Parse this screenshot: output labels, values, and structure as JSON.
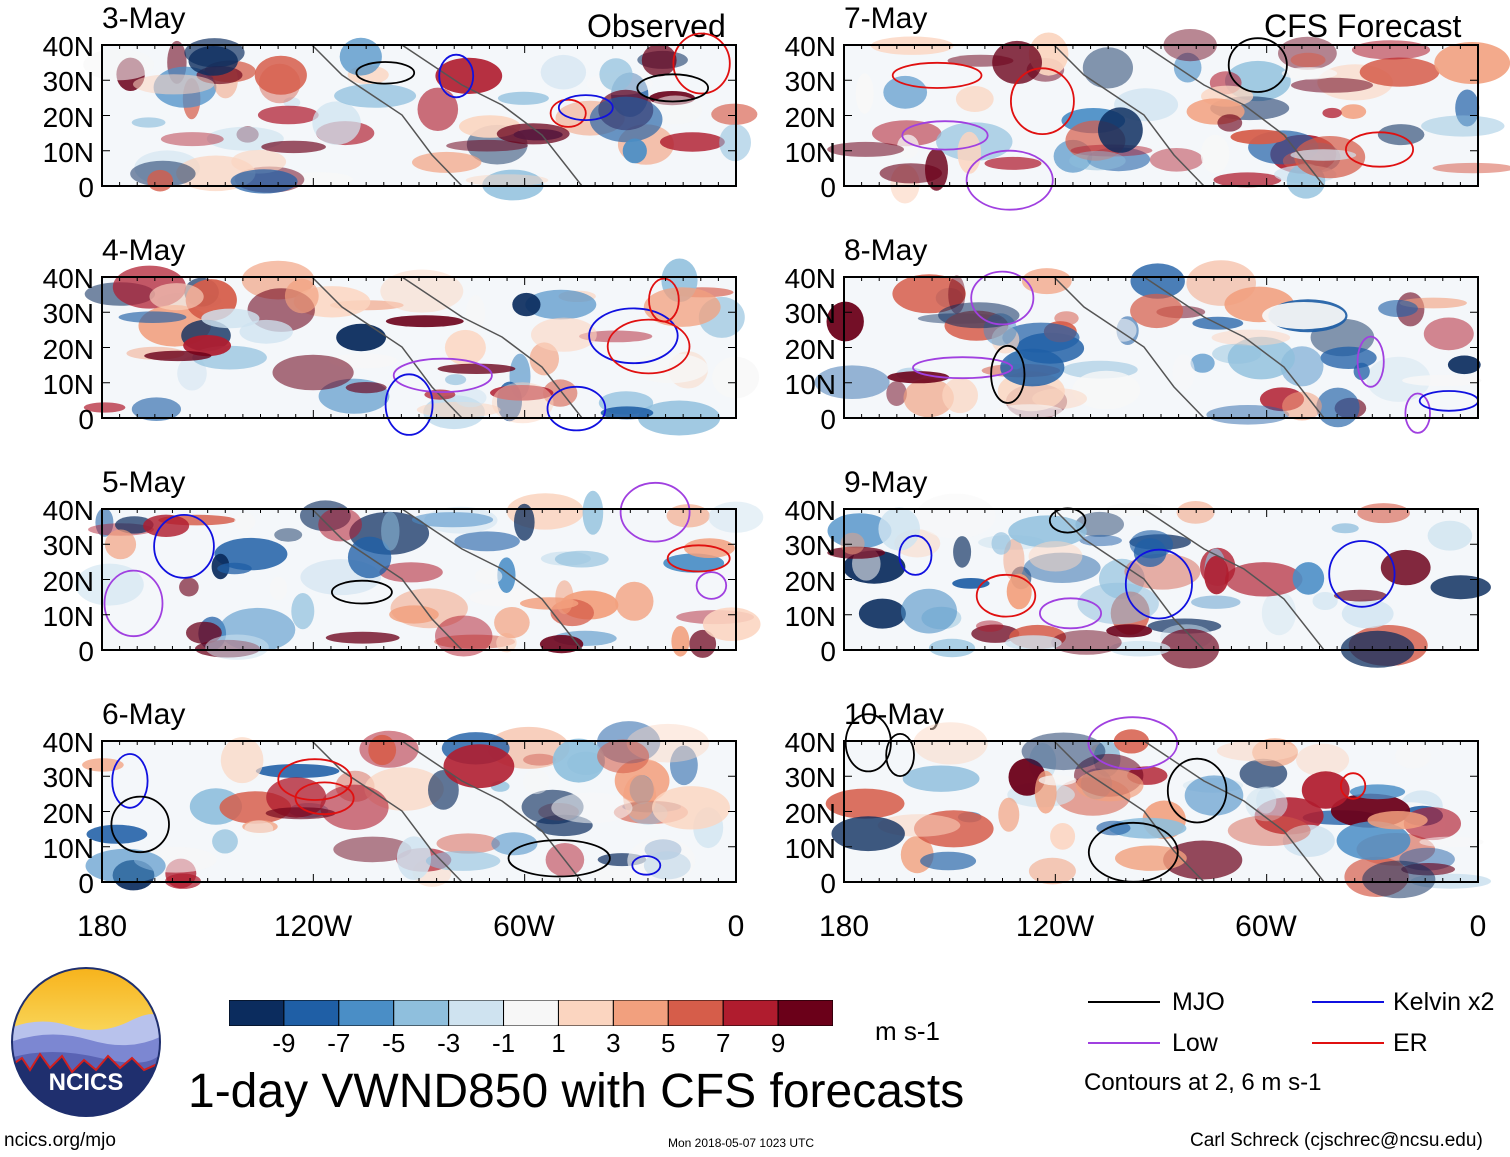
{
  "chart_data": {
    "type": "heatmap",
    "title": "1-day VWND850 with CFS forecasts",
    "variable": "VWND850",
    "units": "m s-1",
    "column_headers": {
      "left": "Observed",
      "right": "CFS Forecast"
    },
    "panels_observed": [
      {
        "date": "3-May"
      },
      {
        "date": "4-May"
      },
      {
        "date": "5-May"
      },
      {
        "date": "6-May"
      }
    ],
    "panels_forecast": [
      {
        "date": "7-May"
      },
      {
        "date": "8-May"
      },
      {
        "date": "9-May"
      },
      {
        "date": "10-May"
      }
    ],
    "lat_ticks": [
      "40N",
      "30N",
      "20N",
      "10N",
      "0"
    ],
    "lon_ticks": [
      "180",
      "120W",
      "60W",
      "0"
    ],
    "ylim": [
      0,
      40
    ],
    "xlim": [
      -180,
      0
    ],
    "colorbar": {
      "labels": [
        "-9",
        "-7",
        "-5",
        "-3",
        "-1",
        "1",
        "3",
        "5",
        "7",
        "9"
      ],
      "colors": [
        "#0b2c5e",
        "#1f5fa6",
        "#4a8ec6",
        "#8fbfdd",
        "#cfe3f0",
        "#f7f7f7",
        "#fbd5c0",
        "#f2a07e",
        "#d65d4a",
        "#b01c2e",
        "#6b0019"
      ],
      "units": "m s-1"
    },
    "legend": [
      {
        "label": "MJO",
        "color": "#000000"
      },
      {
        "label": "Kelvin x2",
        "color": "#1010e0"
      },
      {
        "label": "Low",
        "color": "#a040e0"
      },
      {
        "label": "ER",
        "color": "#e01010"
      }
    ],
    "contours_note": "Contours at 2, 6 m s-1"
  },
  "footer": {
    "logo_text": "NCICS",
    "site": "ncics.org/mjo",
    "timestamp": "Mon 2018-05-07 1023 UTC",
    "credit": "Carl Schreck (cjschrec@ncsu.edu)"
  }
}
